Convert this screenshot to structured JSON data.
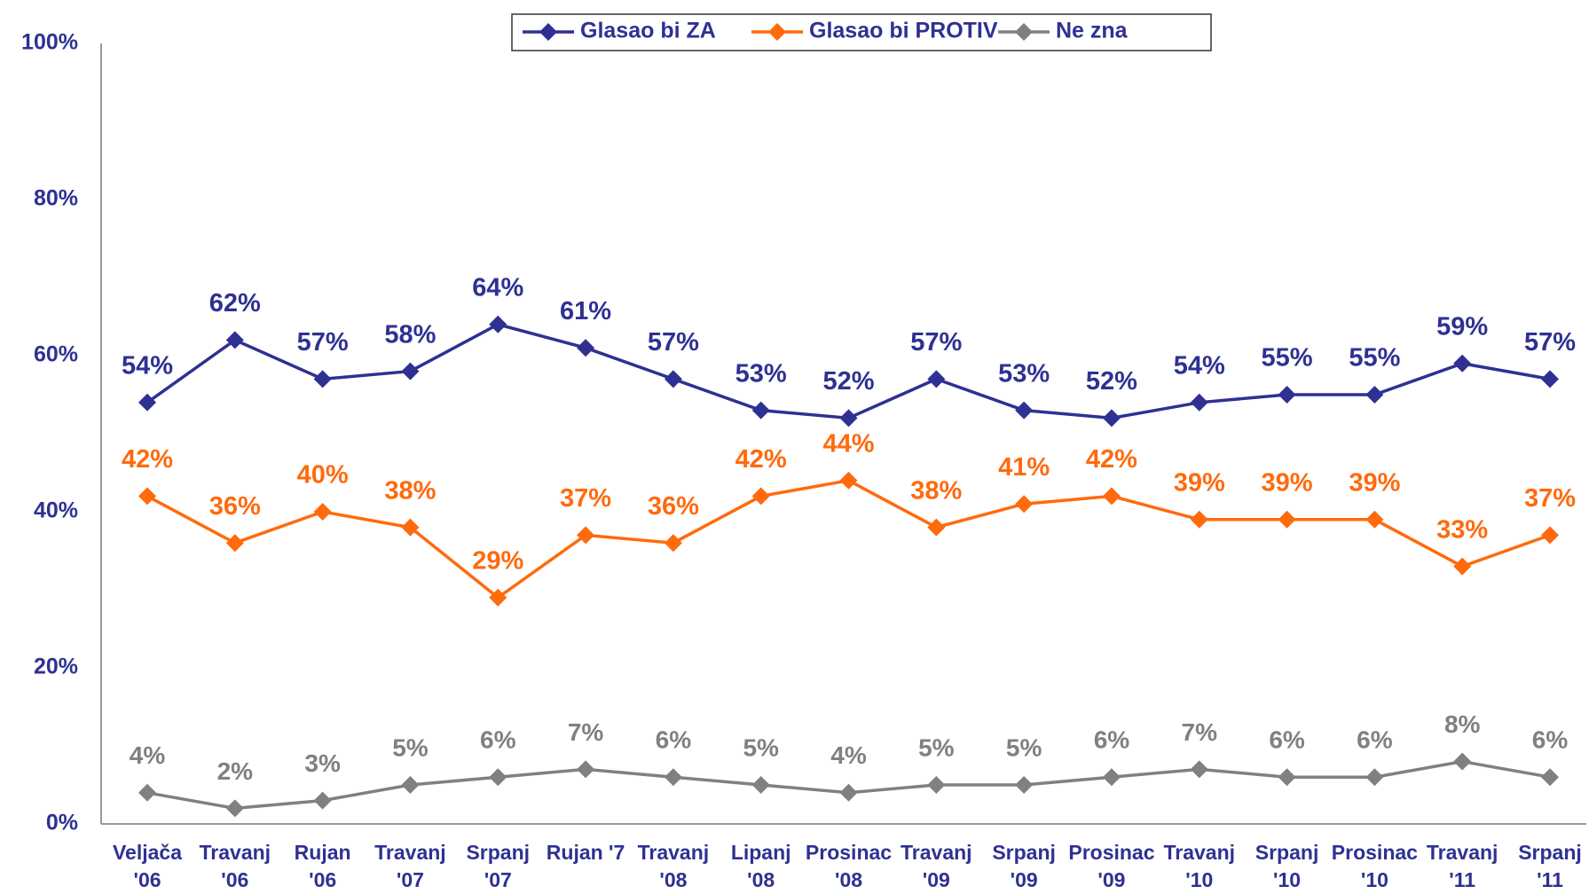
{
  "chart_data": {
    "type": "line",
    "categories": [
      "Veljača\n'06",
      "Travanj\n'06",
      "Rujan\n'06",
      "Travanj\n'07",
      "Srpanj\n'07",
      "Rujan '7",
      "Travanj\n'08",
      "Lipanj\n'08",
      "Prosinac\n'08",
      "Travanj\n'09",
      "Srpanj\n'09",
      "Prosinac\n'09",
      "Travanj\n'10",
      "Srpanj\n'10",
      "Prosinac\n'10",
      "Travanj\n'11",
      "Srpanj\n'11"
    ],
    "series": [
      {
        "name": "Glasao bi ZA",
        "color": "#2e3192",
        "values": [
          54,
          62,
          57,
          58,
          64,
          61,
          57,
          53,
          52,
          57,
          53,
          52,
          54,
          55,
          55,
          59,
          57
        ],
        "value_labels": [
          "54%",
          "62%",
          "57%",
          "58%",
          "64%",
          "61%",
          "57%",
          "53%",
          "52%",
          "57%",
          "53%",
          "52%",
          "54%",
          "55%",
          "55%",
          "59%",
          "57%"
        ]
      },
      {
        "name": "Glasao bi PROTIV",
        "color": "#ff6a0d",
        "values": [
          42,
          36,
          40,
          38,
          29,
          37,
          36,
          42,
          44,
          38,
          41,
          42,
          39,
          39,
          39,
          33,
          37
        ],
        "value_labels": [
          "42%",
          "36%",
          "40%",
          "38%",
          "29%",
          "37%",
          "36%",
          "42%",
          "44%",
          "38%",
          "41%",
          "42%",
          "39%",
          "39%",
          "39%",
          "33%",
          "37%"
        ]
      },
      {
        "name": "Ne zna",
        "color": "#808080",
        "values": [
          4,
          2,
          3,
          5,
          6,
          7,
          6,
          5,
          4,
          5,
          5,
          6,
          7,
          6,
          6,
          8,
          6
        ],
        "value_labels": [
          "4%",
          "2%",
          "3%",
          "5%",
          "6%",
          "7%",
          "6%",
          "5%",
          "4%",
          "5%",
          "5%",
          "6%",
          "7%",
          "6%",
          "6%",
          "8%",
          "6%"
        ]
      }
    ],
    "ylim": [
      0,
      100
    ],
    "yticks": [
      {
        "value": 0,
        "label": "0%"
      },
      {
        "value": 20,
        "label": "20%"
      },
      {
        "value": 40,
        "label": "40%"
      },
      {
        "value": 60,
        "label": "60%"
      },
      {
        "value": 80,
        "label": "80%"
      },
      {
        "value": 100,
        "label": "100%"
      }
    ],
    "grid": false,
    "legend": "top"
  }
}
